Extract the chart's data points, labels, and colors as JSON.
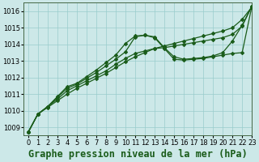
{
  "title": "Graphe pression niveau de la mer (hPa)",
  "bg_color": "#cce8e8",
  "grid_color": "#99cccc",
  "line_color": "#1a5c1a",
  "xlim": [
    -0.5,
    23
  ],
  "ylim": [
    1008.5,
    1016.5
  ],
  "yticks": [
    1009,
    1010,
    1011,
    1012,
    1013,
    1014,
    1015,
    1016
  ],
  "xticks": [
    0,
    1,
    2,
    3,
    4,
    5,
    6,
    7,
    8,
    9,
    10,
    11,
    12,
    13,
    14,
    15,
    16,
    17,
    18,
    19,
    20,
    21,
    22,
    23
  ],
  "series": [
    [
      1008.7,
      1009.8,
      1010.2,
      1010.6,
      1011.0,
      1011.35,
      1011.65,
      1011.95,
      1012.25,
      1012.6,
      1012.95,
      1013.25,
      1013.5,
      1013.75,
      1013.9,
      1014.05,
      1014.2,
      1014.35,
      1014.5,
      1014.65,
      1014.8,
      1015.0,
      1015.5,
      1016.25
    ],
    [
      1008.7,
      1009.8,
      1010.25,
      1010.7,
      1011.2,
      1011.5,
      1011.8,
      1012.1,
      1012.4,
      1012.8,
      1013.15,
      1013.45,
      1013.6,
      1013.75,
      1013.8,
      1013.9,
      1014.0,
      1014.1,
      1014.2,
      1014.3,
      1014.4,
      1014.6,
      1015.1,
      1016.3
    ],
    [
      1008.7,
      1009.8,
      1010.25,
      1010.8,
      1011.35,
      1011.6,
      1011.95,
      1012.3,
      1012.7,
      1013.1,
      1013.55,
      1014.45,
      1014.55,
      1014.45,
      1013.8,
      1013.25,
      1013.1,
      1013.15,
      1013.2,
      1013.3,
      1013.5,
      1014.2,
      1015.15,
      1016.3
    ],
    [
      1008.7,
      1009.8,
      1010.25,
      1010.85,
      1011.45,
      1011.65,
      1012.05,
      1012.45,
      1012.9,
      1013.35,
      1014.05,
      1014.5,
      1014.55,
      1014.4,
      1013.75,
      1013.1,
      1013.05,
      1013.1,
      1013.15,
      1013.25,
      1013.35,
      1013.45,
      1013.5,
      1016.3
    ]
  ],
  "title_fontsize": 8.5,
  "tick_fontsize": 6,
  "marker": "D",
  "markersize": 2.2,
  "linewidth": 0.9
}
